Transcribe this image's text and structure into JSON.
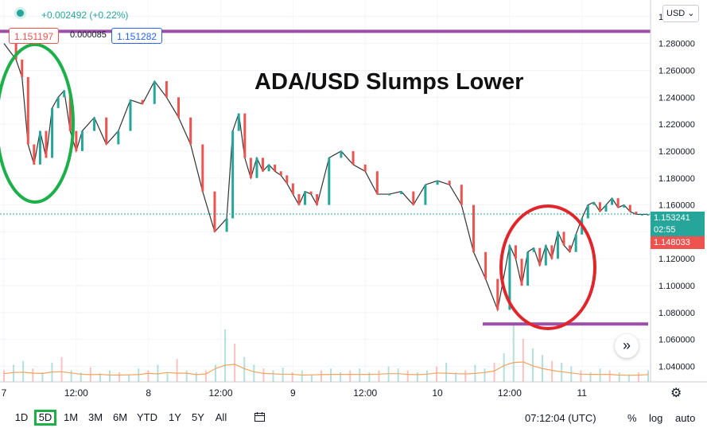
{
  "header": {
    "change": "+0.002492 (+0.22%)",
    "bid": "1.151197",
    "spread": "0.000085",
    "ask": "1.151282",
    "currency": "USD"
  },
  "title": "ADA/USD Slumps Lower",
  "price_labels": {
    "last": "1.153241",
    "countdown": "02:55",
    "low_marker": "1.148033"
  },
  "bottom": {
    "ranges": [
      "1D",
      "5D",
      "1M",
      "3M",
      "6M",
      "YTD",
      "1Y",
      "5Y",
      "All"
    ],
    "active_range": "5D",
    "time": "07:12:04 (UTC)",
    "percent": "%",
    "log": "log",
    "auto": "auto"
  },
  "colors": {
    "up": "#26a69a",
    "down": "#ef5350",
    "line": "#333333",
    "support": "#9c4fa8",
    "circle_green": "#1db04a",
    "circle_red": "#e0252b",
    "volume_avg": "#f7a35c"
  },
  "chart_data": {
    "type": "line",
    "title": "ADA/USD Slumps Lower",
    "x_ticks": [
      "7",
      "12:00",
      "8",
      "12:00",
      "9",
      "12:00",
      "10",
      "12:00",
      "11"
    ],
    "y_ticks": [
      "1.300000",
      "1.280000",
      "1.260000",
      "1.240000",
      "1.220000",
      "1.200000",
      "1.180000",
      "1.160000",
      "1.140000",
      "1.120000",
      "1.100000",
      "1.080000",
      "1.060000",
      "1.040000"
    ],
    "ylim": [
      1.0285,
      1.3123
    ],
    "x_unit": "hours since day 7 00:00 UTC",
    "xlim": [
      0,
      107
    ],
    "series": [
      {
        "x": [
          0,
          2,
          3,
          4,
          5,
          6,
          7,
          8,
          9,
          10,
          11,
          12,
          13,
          15,
          17,
          19,
          21,
          23,
          25,
          27,
          29,
          31,
          33,
          35,
          37,
          38,
          39,
          40,
          41,
          42,
          43,
          44,
          45,
          46,
          47,
          48,
          49,
          50,
          51,
          52,
          54,
          56,
          58,
          60,
          62,
          64,
          66,
          68,
          70,
          72,
          74,
          76,
          78,
          80,
          82,
          84,
          85,
          86,
          87,
          88,
          89,
          90,
          91,
          92,
          93,
          94,
          95,
          96,
          97,
          98,
          99,
          100,
          101,
          102,
          103,
          104,
          105,
          106,
          107
        ],
        "y": [
          1.28,
          1.268,
          1.255,
          1.205,
          1.19,
          1.215,
          1.195,
          1.232,
          1.24,
          1.245,
          1.215,
          1.2,
          1.215,
          1.225,
          1.205,
          1.215,
          1.238,
          1.235,
          1.252,
          1.24,
          1.225,
          1.205,
          1.17,
          1.14,
          1.15,
          1.215,
          1.228,
          1.195,
          1.18,
          1.195,
          1.185,
          1.19,
          1.185,
          1.182,
          1.176,
          1.168,
          1.16,
          1.17,
          1.168,
          1.16,
          1.195,
          1.2,
          1.19,
          1.185,
          1.168,
          1.168,
          1.17,
          1.16,
          1.175,
          1.178,
          1.175,
          1.16,
          1.125,
          1.105,
          1.082,
          1.13,
          1.12,
          1.1,
          1.125,
          1.128,
          1.115,
          1.13,
          1.12,
          1.14,
          1.13,
          1.125,
          1.138,
          1.15,
          1.16,
          1.162,
          1.155,
          1.16,
          1.165,
          1.158,
          1.16,
          1.155,
          1.153,
          1.153,
          1.153
        ]
      }
    ],
    "horizontal_lines": [
      1.289,
      1.0715
    ],
    "current_price": 1.153241,
    "low_marker": 1.148033,
    "volume_relative": [
      0.12,
      0.18,
      0.22,
      0.14,
      0.1,
      0.2,
      0.26,
      0.12,
      0.1,
      0.15,
      0.09,
      0.12,
      0.1,
      0.08,
      0.14,
      0.12,
      0.18,
      0.1,
      0.24,
      0.12,
      0.1,
      0.12,
      0.18,
      0.55,
      0.4,
      0.26,
      0.18,
      0.14,
      0.12,
      0.15,
      0.1,
      0.12,
      0.08,
      0.12,
      0.14,
      0.1,
      0.12,
      0.14,
      0.1,
      0.12,
      0.16,
      0.14,
      0.12,
      0.1,
      0.12,
      0.16,
      0.2,
      0.1,
      0.12,
      0.18,
      0.14,
      0.2,
      0.3,
      0.6,
      0.45,
      0.35,
      0.28,
      0.22,
      0.2,
      0.16,
      0.12,
      0.1,
      0.14,
      0.12,
      0.1,
      0.08,
      0.1,
      0.12
    ]
  }
}
